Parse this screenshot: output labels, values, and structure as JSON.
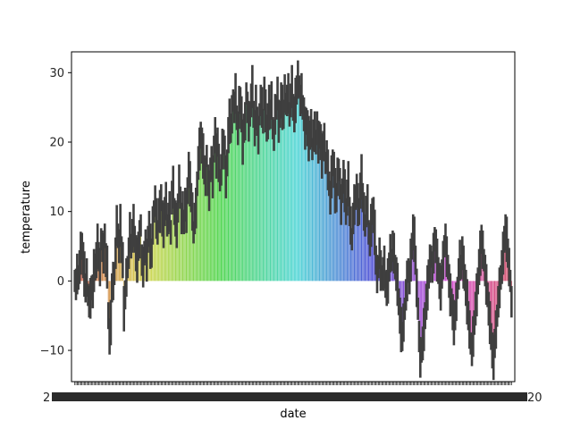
{
  "chart_data": {
    "type": "bar",
    "xlabel": "date",
    "ylabel": "temperature",
    "ylim": [
      -14.5,
      33
    ],
    "y_ticks": [
      -10,
      0,
      10,
      20,
      30
    ],
    "x_tick_labels_note": "365 overlapping date tick labels (illegible)",
    "x_tick_label_start": "2",
    "x_tick_label_end": "20",
    "num_bars": 365,
    "error_bar_color": "#3f3f3f",
    "palette": "husl (red → orange → olive → green → teal → blue → purple → pink)",
    "series": [
      {
        "name": "",
        "values": [
          0.0,
          -0.5,
          1.0,
          0.5,
          2.0,
          4.0,
          5.0,
          3.0,
          1.0,
          -1.0,
          0.5,
          -2.0,
          -3.0,
          -2.5,
          -1.0,
          -1.5,
          1.5,
          2.0,
          3.0,
          5.0,
          3.5,
          2.0,
          6.0,
          5.0,
          4.0,
          6.5,
          3.0,
          2.0,
          -5.0,
          -8.0,
          -6.0,
          -1.0,
          0.0,
          1.0,
          4.0,
          8.0,
          6.5,
          5.0,
          8.0,
          4.5,
          3.0,
          -4.0,
          -2.0,
          0.5,
          2.0,
          4.0,
          7.0,
          5.0,
          6.5,
          8.0,
          6.0,
          4.0,
          3.0,
          5.0,
          6.0,
          8.0,
          3.0,
          2.0,
          4.0,
          5.0,
          3.0,
          6.0,
          7.5,
          5.0,
          4.0,
          8.0,
          10.0,
          11.5,
          9.0,
          7.0,
          9.5,
          10.0,
          12.0,
          9.0,
          8.0,
          10.0,
          11.5,
          8.0,
          9.0,
          10.0,
          7.0,
          12.0,
          13.5,
          10.0,
          9.0,
          8.0,
          10.5,
          14.0,
          12.0,
          9.0,
          10.0,
          8.5,
          11.0,
          10.0,
          13.0,
          16.0,
          14.0,
          12.0,
          10.0,
          7.0,
          9.0,
          10.5,
          14.0,
          17.0,
          19.0,
          21.0,
          19.5,
          18.0,
          16.0,
          15.0,
          18.0,
          14.5,
          13.0,
          16.0,
          17.0,
          15.0,
          19.0,
          21.0,
          18.0,
          20.0,
          17.0,
          14.5,
          16.0,
          19.0,
          20.0,
          18.5,
          15.0,
          17.0,
          21.0,
          23.0,
          22.0,
          24.0,
          26.0,
          25.0,
          27.0,
          23.5,
          22.0,
          25.0,
          26.0,
          24.0,
          20.0,
          22.0,
          23.0,
          27.0,
          25.0,
          23.0,
          24.0,
          26.0,
          28.0,
          24.0,
          22.0,
          25.0,
          23.0,
          21.0,
          24.0,
          26.0,
          25.0,
          23.0,
          27.0,
          24.5,
          22.0,
          23.0,
          25.0,
          24.0,
          26.0,
          22.0,
          21.0,
          24.0,
          25.0,
          27.0,
          23.0,
          24.0,
          26.0,
          25.0,
          24.0,
          27.0,
          25.5,
          26.0,
          27.0,
          24.0,
          26.0,
          28.0,
          25.0,
          24.0,
          26.0,
          27.5,
          29.0,
          28.0,
          26.0,
          27.0,
          25.0,
          24.0,
          22.0,
          23.0,
          22.0,
          20.5,
          21.0,
          22.0,
          19.0,
          21.0,
          21.5,
          20.0,
          22.0,
          20.0,
          21.0,
          20.0,
          18.0,
          19.5,
          20.0,
          17.0,
          18.0,
          16.0,
          14.0,
          12.0,
          15.0,
          17.0,
          16.0,
          13.0,
          12.0,
          15.0,
          16.0,
          14.0,
          11.0,
          13.0,
          15.0,
          13.0,
          10.0,
          12.0,
          14.0,
          10.0,
          8.0,
          6.0,
          9.0,
          11.0,
          12.0,
          13.0,
          11.0,
          10.0,
          13.0,
          15.0,
          12.0,
          10.0,
          8.0,
          10.0,
          11.0,
          7.0,
          6.0,
          8.0,
          10.0,
          9.5,
          7.0,
          3.0,
          1.0,
          2.0,
          4.0,
          1.5,
          0.5,
          1.0,
          2.0,
          -0.5,
          -1.0,
          0.0,
          2.0,
          4.0,
          3.0,
          5.0,
          4.0,
          2.0,
          1.0,
          -0.5,
          -3.0,
          -5.0,
          -7.0,
          -8.0,
          -6.0,
          -4.0,
          -2.0,
          0.0,
          1.5,
          0.5,
          3.0,
          5.0,
          7.0,
          6.0,
          3.0,
          -1.0,
          -4.0,
          -8.0,
          -11.0,
          -10.0,
          -9.0,
          -7.0,
          -5.0,
          -3.0,
          -1.0,
          1.0,
          2.5,
          3.5,
          2.0,
          4.0,
          6.0,
          5.0,
          3.0,
          1.5,
          0.0,
          -1.0,
          1.0,
          3.0,
          5.0,
          6.0,
          3.5,
          2.0,
          0.0,
          -2.0,
          -3.0,
          -4.5,
          -6.0,
          -5.0,
          -3.0,
          -1.0,
          1.0,
          3.0,
          2.0,
          4.0,
          2.0,
          0.5,
          -1.0,
          -3.0,
          -5.0,
          -7.0,
          -9.0,
          -10.0,
          -8.0,
          -6.0,
          -4.0,
          -2.0,
          0.0,
          2.0,
          4.0,
          6.0,
          4.5,
          3.0,
          1.5,
          -0.5,
          -2.0,
          -4.0,
          -6.0,
          -8.0,
          -10.0,
          -11.0,
          -9.0,
          -7.0,
          -5.0,
          -3.0,
          -1.0,
          0.5,
          2.0,
          4.0,
          6.0,
          7.0,
          6.0,
          4.0,
          2.0,
          0.0,
          -3.0
        ]
      }
    ]
  }
}
